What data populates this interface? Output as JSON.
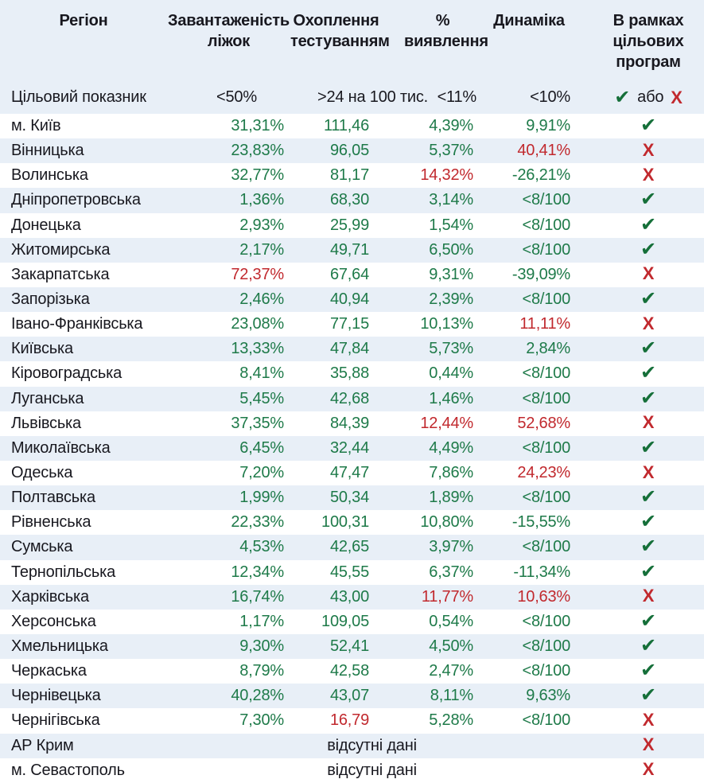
{
  "colors": {
    "positive": "#1e7a49",
    "negative": "#c1292e",
    "check": "#156f39",
    "stripe": "#e8eff7",
    "header_bg": "#e8eff7",
    "text": "#18181f"
  },
  "icons": {
    "check": "✔",
    "cross": "Х"
  },
  "header": {
    "region": "Регіон",
    "beds": [
      "Завантаженість",
      "ліжок"
    ],
    "testing": [
      "Охоплення",
      "тестуванням"
    ],
    "detection": [
      "%",
      "виявлення"
    ],
    "dynamics": [
      "Динаміка"
    ],
    "program": [
      "В рамках",
      "цільових",
      "програм"
    ]
  },
  "target": {
    "label": "Цільовий показник",
    "beds": "<50%",
    "testing": ">24 на 100 тис.",
    "detection": "<11%",
    "dynamics": "<10%",
    "or": "або"
  },
  "chart_data": {
    "type": "table",
    "columns": [
      "Регіон",
      "Завантаженість ліжок",
      "Охоплення тестуванням",
      "% виявлення",
      "Динаміка",
      "В рамках цільових програм"
    ],
    "target_values": [
      "<50%",
      ">24 на 100 тис.",
      "<11%",
      "<10%",
      "✔ або ✗"
    ],
    "rows": [
      {
        "region": "м. Київ",
        "values": [
          {
            "t": "31,31%",
            "ok": true
          },
          {
            "t": "111,46",
            "ok": true
          },
          {
            "t": "4,39%",
            "ok": true
          },
          {
            "t": "9,91%",
            "ok": true
          }
        ],
        "status": "pass"
      },
      {
        "region": "Вінницька",
        "values": [
          {
            "t": "23,83%",
            "ok": true
          },
          {
            "t": "96,05",
            "ok": true
          },
          {
            "t": "5,37%",
            "ok": true
          },
          {
            "t": "40,41%",
            "ok": false
          }
        ],
        "status": "fail"
      },
      {
        "region": "Волинська",
        "values": [
          {
            "t": "32,77%",
            "ok": true
          },
          {
            "t": "81,17",
            "ok": true
          },
          {
            "t": "14,32%",
            "ok": false
          },
          {
            "t": "-26,21%",
            "ok": true
          }
        ],
        "status": "fail"
      },
      {
        "region": "Дніпропетровська",
        "values": [
          {
            "t": "1,36%",
            "ok": true
          },
          {
            "t": "68,30",
            "ok": true
          },
          {
            "t": "3,14%",
            "ok": true
          },
          {
            "t": "<8/100",
            "ok": true
          }
        ],
        "status": "pass"
      },
      {
        "region": "Донецька",
        "values": [
          {
            "t": "2,93%",
            "ok": true
          },
          {
            "t": "25,99",
            "ok": true
          },
          {
            "t": "1,54%",
            "ok": true
          },
          {
            "t": "<8/100",
            "ok": true
          }
        ],
        "status": "pass"
      },
      {
        "region": "Житомирська",
        "values": [
          {
            "t": "2,17%",
            "ok": true
          },
          {
            "t": "49,71",
            "ok": true
          },
          {
            "t": "6,50%",
            "ok": true
          },
          {
            "t": "<8/100",
            "ok": true
          }
        ],
        "status": "pass"
      },
      {
        "region": "Закарпатська",
        "values": [
          {
            "t": "72,37%",
            "ok": false
          },
          {
            "t": "67,64",
            "ok": true
          },
          {
            "t": "9,31%",
            "ok": true
          },
          {
            "t": "-39,09%",
            "ok": true
          }
        ],
        "status": "fail"
      },
      {
        "region": "Запорізька",
        "values": [
          {
            "t": "2,46%",
            "ok": true
          },
          {
            "t": "40,94",
            "ok": true
          },
          {
            "t": "2,39%",
            "ok": true
          },
          {
            "t": "<8/100",
            "ok": true
          }
        ],
        "status": "pass"
      },
      {
        "region": "Івано-Франківська",
        "values": [
          {
            "t": "23,08%",
            "ok": true
          },
          {
            "t": "77,15",
            "ok": true
          },
          {
            "t": "10,13%",
            "ok": true
          },
          {
            "t": "11,11%",
            "ok": false
          }
        ],
        "status": "fail"
      },
      {
        "region": "Київська",
        "values": [
          {
            "t": "13,33%",
            "ok": true
          },
          {
            "t": "47,84",
            "ok": true
          },
          {
            "t": "5,73%",
            "ok": true
          },
          {
            "t": "2,84%",
            "ok": true
          }
        ],
        "status": "pass"
      },
      {
        "region": "Кіровоградська",
        "values": [
          {
            "t": "8,41%",
            "ok": true
          },
          {
            "t": "35,88",
            "ok": true
          },
          {
            "t": "0,44%",
            "ok": true
          },
          {
            "t": "<8/100",
            "ok": true
          }
        ],
        "status": "pass"
      },
      {
        "region": "Луганська",
        "values": [
          {
            "t": "5,45%",
            "ok": true
          },
          {
            "t": "42,68",
            "ok": true
          },
          {
            "t": "1,46%",
            "ok": true
          },
          {
            "t": "<8/100",
            "ok": true
          }
        ],
        "status": "pass"
      },
      {
        "region": "Львівська",
        "values": [
          {
            "t": "37,35%",
            "ok": true
          },
          {
            "t": "84,39",
            "ok": true
          },
          {
            "t": "12,44%",
            "ok": false
          },
          {
            "t": "52,68%",
            "ok": false
          }
        ],
        "status": "fail"
      },
      {
        "region": "Миколаївська",
        "values": [
          {
            "t": "6,45%",
            "ok": true
          },
          {
            "t": "32,44",
            "ok": true
          },
          {
            "t": "4,49%",
            "ok": true
          },
          {
            "t": "<8/100",
            "ok": true
          }
        ],
        "status": "pass"
      },
      {
        "region": "Одеська",
        "values": [
          {
            "t": "7,20%",
            "ok": true
          },
          {
            "t": "47,47",
            "ok": true
          },
          {
            "t": "7,86%",
            "ok": true
          },
          {
            "t": "24,23%",
            "ok": false
          }
        ],
        "status": "fail"
      },
      {
        "region": "Полтавська",
        "values": [
          {
            "t": "1,99%",
            "ok": true
          },
          {
            "t": "50,34",
            "ok": true
          },
          {
            "t": "1,89%",
            "ok": true
          },
          {
            "t": "<8/100",
            "ok": true
          }
        ],
        "status": "pass"
      },
      {
        "region": "Рівненська",
        "values": [
          {
            "t": "22,33%",
            "ok": true
          },
          {
            "t": "100,31",
            "ok": true
          },
          {
            "t": "10,80%",
            "ok": true
          },
          {
            "t": "-15,55%",
            "ok": true
          }
        ],
        "status": "pass"
      },
      {
        "region": "Сумська",
        "values": [
          {
            "t": "4,53%",
            "ok": true
          },
          {
            "t": "42,65",
            "ok": true
          },
          {
            "t": "3,97%",
            "ok": true
          },
          {
            "t": "<8/100",
            "ok": true
          }
        ],
        "status": "pass"
      },
      {
        "region": "Тернопільська",
        "values": [
          {
            "t": "12,34%",
            "ok": true
          },
          {
            "t": "45,55",
            "ok": true
          },
          {
            "t": "6,37%",
            "ok": true
          },
          {
            "t": "-11,34%",
            "ok": true
          }
        ],
        "status": "pass"
      },
      {
        "region": "Харківська",
        "values": [
          {
            "t": "16,74%",
            "ok": true
          },
          {
            "t": "43,00",
            "ok": true
          },
          {
            "t": "11,77%",
            "ok": false
          },
          {
            "t": "10,63%",
            "ok": false
          }
        ],
        "status": "fail"
      },
      {
        "region": "Херсонська",
        "values": [
          {
            "t": "1,17%",
            "ok": true
          },
          {
            "t": "109,05",
            "ok": true
          },
          {
            "t": "0,54%",
            "ok": true
          },
          {
            "t": "<8/100",
            "ok": true
          }
        ],
        "status": "pass"
      },
      {
        "region": "Хмельницька",
        "values": [
          {
            "t": "9,30%",
            "ok": true
          },
          {
            "t": "52,41",
            "ok": true
          },
          {
            "t": "4,50%",
            "ok": true
          },
          {
            "t": "<8/100",
            "ok": true
          }
        ],
        "status": "pass"
      },
      {
        "region": "Черкаська",
        "values": [
          {
            "t": "8,79%",
            "ok": true
          },
          {
            "t": "42,58",
            "ok": true
          },
          {
            "t": "2,47%",
            "ok": true
          },
          {
            "t": "<8/100",
            "ok": true
          }
        ],
        "status": "pass"
      },
      {
        "region": "Чернівецька",
        "values": [
          {
            "t": "40,28%",
            "ok": true
          },
          {
            "t": "43,07",
            "ok": true
          },
          {
            "t": "8,11%",
            "ok": true
          },
          {
            "t": "9,63%",
            "ok": true
          }
        ],
        "status": "pass"
      },
      {
        "region": "Чернігівська",
        "values": [
          {
            "t": "7,30%",
            "ok": true
          },
          {
            "t": "16,79",
            "ok": false
          },
          {
            "t": "5,28%",
            "ok": true
          },
          {
            "t": "<8/100",
            "ok": true
          }
        ],
        "status": "fail"
      },
      {
        "region": "АР Крим",
        "no_data": "відсутні дані",
        "status": "fail"
      },
      {
        "region": "м. Севастополь",
        "no_data": "відсутні дані",
        "status": "fail"
      }
    ]
  }
}
